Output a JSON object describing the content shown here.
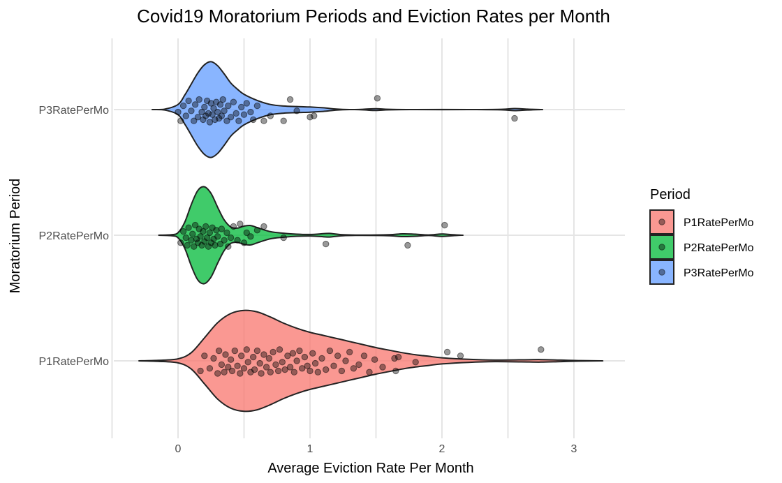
{
  "chart_data": {
    "type": "violin",
    "title": "Covid19 Moratorium Periods and Eviction Rates per Month",
    "xlabel": "Average Eviction Rate Per Month",
    "ylabel": "Moratorium Period",
    "xlim": [
      -0.35,
      3.35
    ],
    "x_ticks": [
      0,
      1,
      2,
      3
    ],
    "x_tick_labels": [
      "0",
      "1",
      "2",
      "3"
    ],
    "categories": [
      "P1RatePerMo",
      "P2RatePerMo",
      "P3RatePerMo"
    ],
    "grid": true,
    "legend": {
      "title": "Period",
      "position": "right",
      "entries": [
        "P1RatePerMo",
        "P2RatePerMo",
        "P3RatePerMo"
      ]
    },
    "series": [
      {
        "name": "P1RatePerMo",
        "color": "#F8766D",
        "range": [
          -0.3,
          3.2
        ],
        "density": [
          [
            -0.3,
            0.0
          ],
          [
            -0.15,
            0.01
          ],
          [
            0.0,
            0.04
          ],
          [
            0.1,
            0.16
          ],
          [
            0.2,
            0.45
          ],
          [
            0.3,
            0.75
          ],
          [
            0.4,
            0.93
          ],
          [
            0.5,
            0.99
          ],
          [
            0.6,
            0.96
          ],
          [
            0.7,
            0.86
          ],
          [
            0.8,
            0.74
          ],
          [
            0.9,
            0.64
          ],
          [
            1.0,
            0.56
          ],
          [
            1.1,
            0.5
          ],
          [
            1.2,
            0.44
          ],
          [
            1.3,
            0.38
          ],
          [
            1.4,
            0.32
          ],
          [
            1.5,
            0.26
          ],
          [
            1.6,
            0.21
          ],
          [
            1.7,
            0.16
          ],
          [
            1.8,
            0.12
          ],
          [
            1.9,
            0.09
          ],
          [
            2.0,
            0.06
          ],
          [
            2.2,
            0.03
          ],
          [
            2.4,
            0.015
          ],
          [
            2.6,
            0.02
          ],
          [
            2.75,
            0.025
          ],
          [
            2.9,
            0.015
          ],
          [
            3.05,
            0.005
          ],
          [
            3.2,
            0.0
          ]
        ],
        "points": [
          [
            0.17,
            0.08
          ],
          [
            0.2,
            -0.04
          ],
          [
            0.24,
            0.06
          ],
          [
            0.27,
            -0.02
          ],
          [
            0.3,
            0.1
          ],
          [
            0.31,
            -0.08
          ],
          [
            0.33,
            0.03
          ],
          [
            0.35,
            0.09
          ],
          [
            0.36,
            -0.05
          ],
          [
            0.38,
            0.05
          ],
          [
            0.4,
            -0.01
          ],
          [
            0.41,
            0.08
          ],
          [
            0.43,
            -0.08
          ],
          [
            0.45,
            0.04
          ],
          [
            0.47,
            0.1
          ],
          [
            0.48,
            -0.04
          ],
          [
            0.5,
            0.06
          ],
          [
            0.52,
            -0.09
          ],
          [
            0.53,
            0.01
          ],
          [
            0.55,
            0.09
          ],
          [
            0.57,
            -0.03
          ],
          [
            0.58,
            0.07
          ],
          [
            0.6,
            -0.08
          ],
          [
            0.62,
            0.02
          ],
          [
            0.63,
            0.1
          ],
          [
            0.65,
            -0.05
          ],
          [
            0.67,
            0.05
          ],
          [
            0.69,
            -0.02
          ],
          [
            0.7,
            0.09
          ],
          [
            0.72,
            -0.07
          ],
          [
            0.74,
            0.03
          ],
          [
            0.76,
            0.08
          ],
          [
            0.77,
            -0.09
          ],
          [
            0.79,
            0.01
          ],
          [
            0.81,
            0.07
          ],
          [
            0.83,
            -0.04
          ],
          [
            0.85,
            0.05
          ],
          [
            0.87,
            -0.06
          ],
          [
            0.88,
            0.09
          ],
          [
            0.9,
            0.0
          ],
          [
            0.92,
            -0.08
          ],
          [
            0.94,
            0.06
          ],
          [
            0.96,
            -0.03
          ],
          [
            0.98,
            0.04
          ],
          [
            1.0,
            0.08
          ],
          [
            1.02,
            -0.06
          ],
          [
            1.04,
            0.02
          ],
          [
            1.06,
            0.09
          ],
          [
            1.09,
            -0.02
          ],
          [
            1.12,
            0.07
          ],
          [
            1.15,
            -0.08
          ],
          [
            1.18,
            0.04
          ],
          [
            1.21,
            -0.04
          ],
          [
            1.24,
            0.08
          ],
          [
            1.27,
            0.0
          ],
          [
            1.3,
            -0.07
          ],
          [
            1.33,
            0.06
          ],
          [
            1.37,
            0.03
          ],
          [
            1.41,
            -0.04
          ],
          [
            1.45,
            0.09
          ],
          [
            1.49,
            -0.01
          ],
          [
            1.55,
            0.05
          ],
          [
            1.64,
            -0.02
          ],
          [
            1.65,
            0.08
          ],
          [
            1.67,
            -0.03
          ],
          [
            1.8,
            0.01
          ],
          [
            2.04,
            -0.07
          ],
          [
            2.14,
            -0.04
          ],
          [
            2.75,
            -0.09
          ]
        ]
      },
      {
        "name": "P2RatePerMo",
        "color": "#00BA38",
        "range": [
          -0.15,
          2.15
        ],
        "density": [
          [
            -0.15,
            0.0
          ],
          [
            -0.05,
            0.01
          ],
          [
            0.0,
            0.05
          ],
          [
            0.05,
            0.25
          ],
          [
            0.1,
            0.6
          ],
          [
            0.15,
            0.88
          ],
          [
            0.2,
            0.95
          ],
          [
            0.25,
            0.82
          ],
          [
            0.3,
            0.55
          ],
          [
            0.35,
            0.3
          ],
          [
            0.4,
            0.16
          ],
          [
            0.45,
            0.14
          ],
          [
            0.5,
            0.18
          ],
          [
            0.55,
            0.19
          ],
          [
            0.6,
            0.15
          ],
          [
            0.7,
            0.07
          ],
          [
            0.8,
            0.04
          ],
          [
            0.9,
            0.02
          ],
          [
            1.0,
            0.015
          ],
          [
            1.1,
            0.03
          ],
          [
            1.15,
            0.035
          ],
          [
            1.25,
            0.01
          ],
          [
            1.4,
            0.003
          ],
          [
            1.6,
            0.01
          ],
          [
            1.7,
            0.028
          ],
          [
            1.8,
            0.02
          ],
          [
            1.9,
            0.005
          ],
          [
            2.0,
            0.025
          ],
          [
            2.08,
            0.01
          ],
          [
            2.15,
            0.0
          ]
        ],
        "points": [
          [
            0.02,
            0.06
          ],
          [
            0.04,
            -0.03
          ],
          [
            0.06,
            0.02
          ],
          [
            0.07,
            0.08
          ],
          [
            0.08,
            -0.06
          ],
          [
            0.1,
            0.04
          ],
          [
            0.11,
            -0.01
          ],
          [
            0.12,
            0.09
          ],
          [
            0.13,
            -0.08
          ],
          [
            0.14,
            0.03
          ],
          [
            0.15,
            0.06
          ],
          [
            0.16,
            -0.05
          ],
          [
            0.17,
            0.01
          ],
          [
            0.18,
            0.08
          ],
          [
            0.19,
            -0.03
          ],
          [
            0.2,
            0.05
          ],
          [
            0.21,
            -0.07
          ],
          [
            0.22,
            0.02
          ],
          [
            0.23,
            0.09
          ],
          [
            0.24,
            -0.02
          ],
          [
            0.25,
            0.06
          ],
          [
            0.26,
            -0.06
          ],
          [
            0.27,
            0.03
          ],
          [
            0.28,
            0.08
          ],
          [
            0.29,
            -0.04
          ],
          [
            0.3,
            0.01
          ],
          [
            0.32,
            0.07
          ],
          [
            0.33,
            -0.05
          ],
          [
            0.35,
            0.04
          ],
          [
            0.37,
            -0.02
          ],
          [
            0.38,
            0.09
          ],
          [
            0.4,
            0.02
          ],
          [
            0.42,
            -0.07
          ],
          [
            0.45,
            0.04
          ],
          [
            0.47,
            -0.09
          ],
          [
            0.5,
            0.06
          ],
          [
            0.52,
            -0.02
          ],
          [
            0.55,
            0.01
          ],
          [
            0.6,
            -0.04
          ],
          [
            0.65,
            -0.07
          ],
          [
            0.8,
            0.02
          ],
          [
            1.12,
            0.07
          ],
          [
            1.74,
            0.08
          ],
          [
            2.02,
            -0.08
          ]
        ]
      },
      {
        "name": "P3RatePerMo",
        "color": "#619CFF",
        "range": [
          -0.2,
          2.75
        ],
        "density": [
          [
            -0.2,
            0.0
          ],
          [
            -0.1,
            0.01
          ],
          [
            0.0,
            0.1
          ],
          [
            0.05,
            0.28
          ],
          [
            0.1,
            0.5
          ],
          [
            0.15,
            0.72
          ],
          [
            0.2,
            0.88
          ],
          [
            0.25,
            0.94
          ],
          [
            0.3,
            0.86
          ],
          [
            0.35,
            0.7
          ],
          [
            0.4,
            0.52
          ],
          [
            0.45,
            0.4
          ],
          [
            0.5,
            0.3
          ],
          [
            0.6,
            0.18
          ],
          [
            0.7,
            0.1
          ],
          [
            0.8,
            0.07
          ],
          [
            0.9,
            0.06
          ],
          [
            1.0,
            0.05
          ],
          [
            1.1,
            0.035
          ],
          [
            1.2,
            0.01
          ],
          [
            1.3,
            0.0
          ],
          [
            1.4,
            0.005
          ],
          [
            1.5,
            0.018
          ],
          [
            1.6,
            0.005
          ],
          [
            1.8,
            0.0
          ],
          [
            2.2,
            0.0
          ],
          [
            2.45,
            0.005
          ],
          [
            2.55,
            0.02
          ],
          [
            2.65,
            0.008
          ],
          [
            2.75,
            0.0
          ]
        ],
        "points": [
          [
            0.0,
            0.02
          ],
          [
            0.02,
            0.09
          ],
          [
            0.04,
            -0.03
          ],
          [
            0.06,
            0.05
          ],
          [
            0.08,
            -0.07
          ],
          [
            0.1,
            0.01
          ],
          [
            0.12,
            0.09
          ],
          [
            0.13,
            -0.04
          ],
          [
            0.15,
            0.06
          ],
          [
            0.16,
            -0.08
          ],
          [
            0.18,
            0.02
          ],
          [
            0.19,
            0.08
          ],
          [
            0.2,
            -0.02
          ],
          [
            0.21,
            0.05
          ],
          [
            0.22,
            -0.07
          ],
          [
            0.23,
            0.03
          ],
          [
            0.24,
            0.1
          ],
          [
            0.25,
            -0.05
          ],
          [
            0.26,
            0.04
          ],
          [
            0.27,
            -0.01
          ],
          [
            0.28,
            0.08
          ],
          [
            0.29,
            -0.06
          ],
          [
            0.3,
            0.02
          ],
          [
            0.31,
            0.07
          ],
          [
            0.32,
            -0.04
          ],
          [
            0.33,
            0.05
          ],
          [
            0.34,
            -0.08
          ],
          [
            0.35,
            0.01
          ],
          [
            0.37,
            0.09
          ],
          [
            0.38,
            -0.03
          ],
          [
            0.4,
            0.06
          ],
          [
            0.42,
            -0.06
          ],
          [
            0.44,
            0.03
          ],
          [
            0.46,
            0.09
          ],
          [
            0.48,
            -0.02
          ],
          [
            0.5,
            0.04
          ],
          [
            0.52,
            -0.05
          ],
          [
            0.55,
            0.02
          ],
          [
            0.57,
            0.08
          ],
          [
            0.6,
            -0.03
          ],
          [
            0.65,
            0.09
          ],
          [
            0.7,
            0.05
          ],
          [
            0.8,
            0.09
          ],
          [
            0.85,
            -0.08
          ],
          [
            0.9,
            0.01
          ],
          [
            1.0,
            0.06
          ],
          [
            1.03,
            0.05
          ],
          [
            1.51,
            -0.09
          ],
          [
            2.55,
            0.07
          ]
        ]
      }
    ]
  }
}
